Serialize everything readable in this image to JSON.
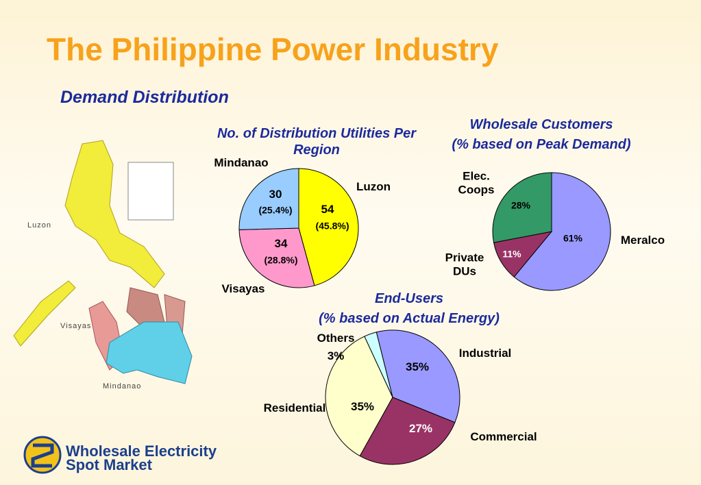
{
  "slide": {
    "title": "The Philippine Power Industry",
    "subtitle": "Demand Distribution",
    "map_labels": [
      "Luzon",
      "Visayas",
      "Mindanao"
    ],
    "logo": [
      "Wholesale Electricity",
      "Spot Market"
    ]
  },
  "chart_data": [
    {
      "type": "pie",
      "title": "No. of Distribution Utilities Per Region",
      "categories": [
        "Luzon",
        "Visayas",
        "Mindanao"
      ],
      "values": [
        54,
        34,
        30
      ],
      "percentages": [
        45.8,
        28.8,
        25.4
      ],
      "percentage_labels": [
        "(45.8%)",
        "(28.8%)",
        "(25.4%)"
      ],
      "colors": [
        "#ffff00",
        "#ff99cc",
        "#99ccff"
      ]
    },
    {
      "type": "pie",
      "title": "Wholesale Customers",
      "subtitle": "(% based on Peak Demand)",
      "categories": [
        "Meralco",
        "Private DUs",
        "Elec. Coops"
      ],
      "values": [
        61,
        11,
        28
      ],
      "value_labels": [
        "61%",
        "11%",
        "28%"
      ],
      "colors": [
        "#9999ff",
        "#993366",
        "#339966"
      ]
    },
    {
      "type": "pie",
      "title": "End-Users",
      "subtitle": "(% based on Actual Energy)",
      "categories": [
        "Industrial",
        "Commercial",
        "Residential",
        "Others"
      ],
      "values": [
        35,
        27,
        35,
        3
      ],
      "value_labels": [
        "35%",
        "27%",
        "35%",
        "3%"
      ],
      "colors": [
        "#9999ff",
        "#993366",
        "#ffffcc",
        "#ccffff"
      ]
    }
  ]
}
